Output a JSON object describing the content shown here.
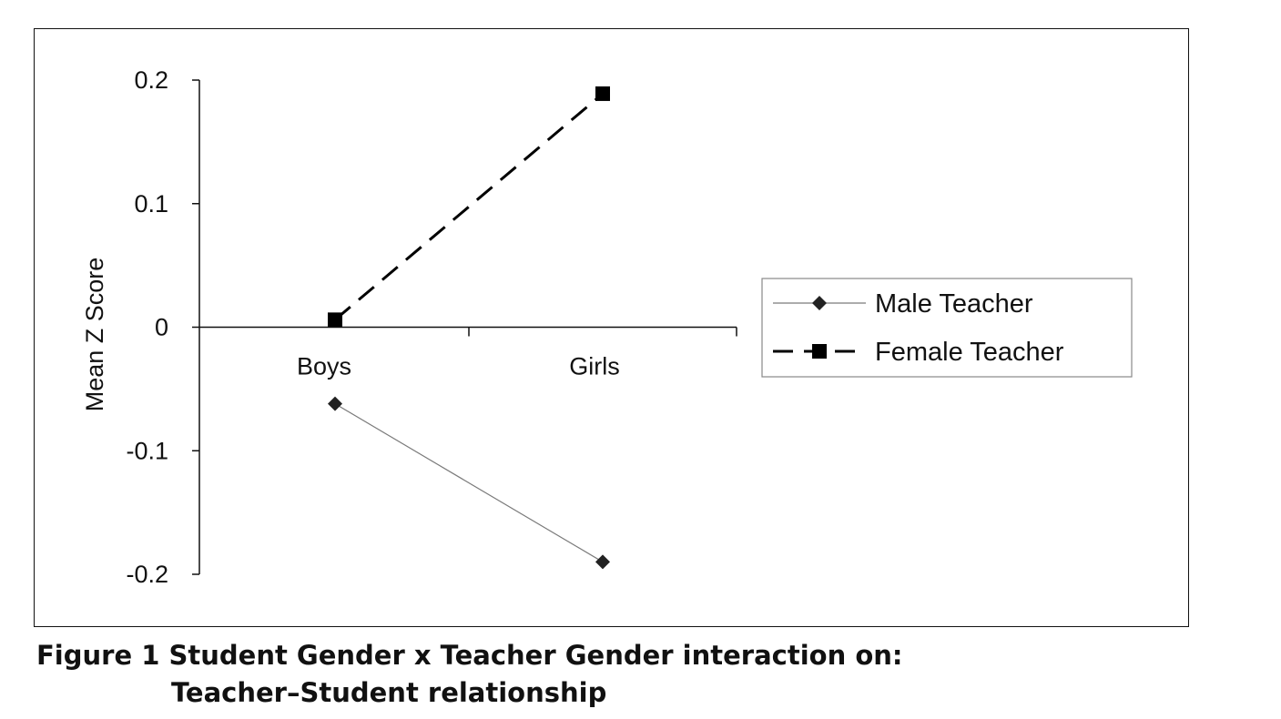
{
  "chart_data": {
    "type": "line",
    "categories": [
      "Boys",
      "Girls"
    ],
    "series": [
      {
        "name": "Male Teacher",
        "values": [
          -0.062,
          -0.19
        ],
        "marker": "diamond",
        "line_style": "solid",
        "color": "#7a7a7a"
      },
      {
        "name": "Female Teacher",
        "values": [
          0.006,
          0.189
        ],
        "marker": "square",
        "line_style": "dashed",
        "color": "#000000"
      }
    ],
    "ylabel": "Mean Z Score",
    "xlabel": "",
    "ylim": [
      -0.2,
      0.2
    ],
    "yticks": [
      0.2,
      0.1,
      0,
      -0.1,
      -0.2
    ],
    "ytick_labels": [
      "0.2",
      "0.1",
      "0",
      "-0.1",
      "-0.2"
    ],
    "grid": false,
    "legend_position": "right",
    "category_axis_at": 0
  },
  "caption": {
    "line1": "Figure 1 Student Gender x Teacher Gender interaction on:",
    "line2": "Teacher–Student relationship"
  }
}
